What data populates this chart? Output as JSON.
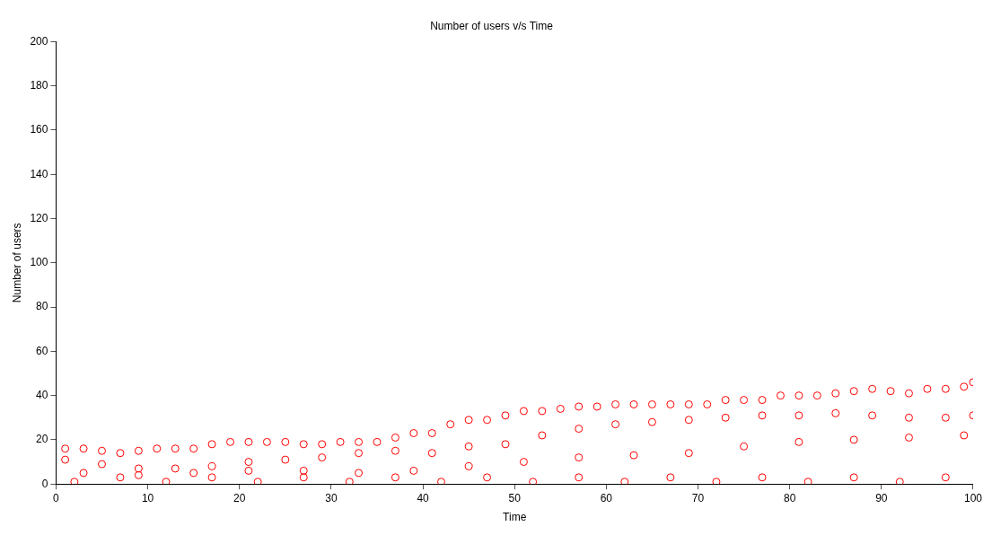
{
  "chart_data": {
    "type": "scatter",
    "title": "Number of users v/s Time",
    "xlabel": "Time",
    "ylabel": "Number of users",
    "marker": "circle",
    "xlim": [
      0,
      100
    ],
    "ylim": [
      0,
      200
    ],
    "xticks": [
      0,
      10,
      20,
      30,
      40,
      50,
      60,
      70,
      80,
      90,
      100
    ],
    "yticks": [
      0,
      20,
      40,
      60,
      80,
      100,
      120,
      140,
      160,
      180,
      200
    ],
    "series": [
      {
        "color": "#ff0000",
        "x": [
          1,
          3,
          5,
          7,
          9,
          11,
          13,
          15,
          17,
          19,
          21,
          23,
          25,
          27,
          29,
          31,
          33,
          35,
          37,
          39,
          41,
          43,
          45,
          47,
          49,
          51,
          53,
          55,
          57,
          59,
          61,
          63,
          65,
          67,
          69,
          71,
          73,
          75,
          77,
          79,
          81,
          83,
          85,
          87,
          89,
          91,
          93,
          95,
          97,
          99,
          100,
          1,
          5,
          9,
          13,
          17,
          21,
          25,
          29,
          33,
          37,
          41,
          45,
          49,
          53,
          57,
          61,
          65,
          69,
          73,
          77,
          81,
          85,
          89,
          93,
          97,
          100,
          3,
          9,
          15,
          21,
          27,
          33,
          39,
          45,
          51,
          57,
          63,
          69,
          75,
          81,
          87,
          93,
          99,
          2,
          7,
          12,
          17,
          22,
          27,
          32,
          37,
          42,
          47,
          52,
          57,
          62,
          67,
          72,
          77,
          82,
          87,
          92,
          97
        ],
        "values": [
          16,
          16,
          15,
          14,
          15,
          16,
          16,
          16,
          18,
          19,
          19,
          19,
          19,
          18,
          18,
          19,
          19,
          19,
          21,
          23,
          23,
          27,
          29,
          29,
          31,
          33,
          33,
          34,
          35,
          35,
          36,
          36,
          36,
          36,
          36,
          36,
          38,
          38,
          38,
          40,
          40,
          40,
          41,
          42,
          43,
          42,
          41,
          43,
          43,
          44,
          46,
          11,
          9,
          7,
          7,
          8,
          10,
          11,
          12,
          14,
          15,
          14,
          17,
          18,
          22,
          25,
          27,
          28,
          29,
          30,
          31,
          31,
          32,
          31,
          30,
          30,
          31,
          5,
          4,
          5,
          6,
          6,
          5,
          6,
          8,
          10,
          12,
          13,
          14,
          17,
          19,
          20,
          21,
          22,
          1,
          3,
          1,
          3,
          1,
          3,
          1,
          3,
          1,
          3,
          1,
          3,
          1,
          3,
          1,
          3,
          1,
          3,
          1,
          3
        ]
      }
    ]
  }
}
